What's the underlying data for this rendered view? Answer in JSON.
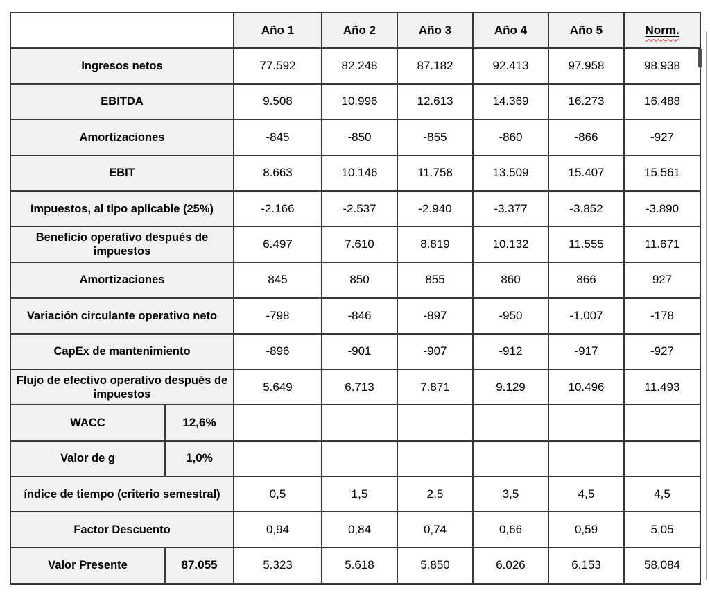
{
  "table": {
    "columns": [
      "Año 1",
      "Año 2",
      "Año 3",
      "Año 4",
      "Año 5",
      "Norm."
    ],
    "spellcheck_column_index": 5,
    "rows": [
      {
        "label": "Ingresos netos",
        "values": [
          "77.592",
          "82.248",
          "87.182",
          "92.413",
          "97.958",
          "98.938"
        ]
      },
      {
        "label": "EBITDA",
        "values": [
          "9.508",
          "10.996",
          "12.613",
          "14.369",
          "16.273",
          "16.488"
        ]
      },
      {
        "label": "Amortizaciones",
        "values": [
          "-845",
          "-850",
          "-855",
          "-860",
          "-866",
          "-927"
        ]
      },
      {
        "label": "EBIT",
        "values": [
          "8.663",
          "10.146",
          "11.758",
          "13.509",
          "15.407",
          "15.561"
        ]
      },
      {
        "label": "Impuestos, al tipo aplicable (25%)",
        "values": [
          "-2.166",
          "-2.537",
          "-2.940",
          "-3.377",
          "-3.852",
          "-3.890"
        ]
      },
      {
        "label": "Beneficio operativo después de impuestos",
        "values": [
          "6.497",
          "7.610",
          "8.819",
          "10.132",
          "11.555",
          "11.671"
        ]
      },
      {
        "label": "Amortizaciones",
        "values": [
          "845",
          "850",
          "855",
          "860",
          "866",
          "927"
        ]
      },
      {
        "label": "Variación circulante operativo neto",
        "values": [
          "-798",
          "-846",
          "-897",
          "-950",
          "-1.007",
          "-178"
        ]
      },
      {
        "label": "CapEx de mantenimiento",
        "values": [
          "-896",
          "-901",
          "-907",
          "-912",
          "-917",
          "-927"
        ]
      },
      {
        "label": "Flujo de efectivo operativo después de impuestos",
        "values": [
          "5.649",
          "6.713",
          "7.871",
          "9.129",
          "10.496",
          "11.493"
        ]
      },
      {
        "label": "WACC",
        "sub_value": "12,6%",
        "values": [
          "",
          "",
          "",
          "",
          "",
          ""
        ]
      },
      {
        "label": "Valor de g",
        "sub_value": "1,0%",
        "values": [
          "",
          "",
          "",
          "",
          "",
          ""
        ]
      },
      {
        "label": "índice de tiempo (criterio semestral)",
        "values": [
          "0,5",
          "1,5",
          "2,5",
          "3,5",
          "4,5",
          "4,5"
        ]
      },
      {
        "label": "Factor Descuento",
        "values": [
          "0,94",
          "0,84",
          "0,74",
          "0,66",
          "0,59",
          "5,05"
        ]
      },
      {
        "label": "Valor Presente",
        "sub_value": "87.055",
        "values": [
          "5.323",
          "5.618",
          "5.850",
          "6.026",
          "6.153",
          "58.084"
        ]
      }
    ],
    "colors": {
      "header_fill": "#f1f1f1",
      "label_fill": "#f1f1f1",
      "border": "#383838",
      "spellcheck_red": "#c5392b"
    }
  }
}
